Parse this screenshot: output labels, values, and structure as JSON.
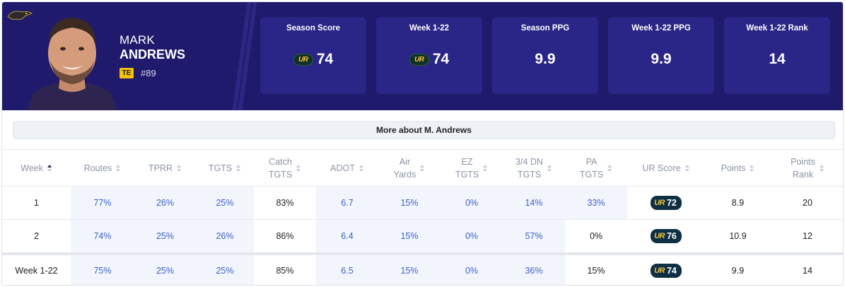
{
  "player": {
    "first_name": "MARK",
    "last_name": "ANDREWS",
    "position": "TE",
    "jersey": "#89"
  },
  "summary": [
    {
      "title": "Season Score",
      "value": "74",
      "ur_logo": true
    },
    {
      "title": "Week 1-22",
      "value": "74",
      "ur_logo": true
    },
    {
      "title": "Season PPG",
      "value": "9.9",
      "ur_logo": false
    },
    {
      "title": "Week 1-22 PPG",
      "value": "9.9",
      "ur_logo": false
    },
    {
      "title": "Week 1-22 Rank",
      "value": "14",
      "ur_logo": false
    }
  ],
  "more_button": "More about M. Andrews",
  "ur_logo_text": "UR",
  "table": {
    "columns": [
      {
        "line1": "Week",
        "line2": "",
        "sorted": true
      },
      {
        "line1": "Routes",
        "line2": "",
        "sorted": false
      },
      {
        "line1": "TPRR",
        "line2": "",
        "sorted": false
      },
      {
        "line1": "TGTS",
        "line2": "",
        "sorted": false
      },
      {
        "line1": "Catch",
        "line2": "TGTS",
        "sorted": false
      },
      {
        "line1": "ADOT",
        "line2": "",
        "sorted": false
      },
      {
        "line1": "Air",
        "line2": "Yards",
        "sorted": false
      },
      {
        "line1": "EZ",
        "line2": "TGTS",
        "sorted": false
      },
      {
        "line1": "3/4 DN",
        "line2": "TGTS",
        "sorted": false
      },
      {
        "line1": "PA",
        "line2": "TGTS",
        "sorted": false
      },
      {
        "line1": "UR Score",
        "line2": "",
        "sorted": false
      },
      {
        "line1": "Points",
        "line2": "",
        "sorted": false
      },
      {
        "line1": "Points",
        "line2": "Rank",
        "sorted": false
      }
    ],
    "rows": [
      {
        "week": "1",
        "routes": "77%",
        "tprr": "26%",
        "tgts": "25%",
        "catch": "83%",
        "adot": "6.7",
        "air": "15%",
        "ez": "0%",
        "dn": "14%",
        "pa": "33%",
        "ur": "72",
        "points": "8.9",
        "rank": "20"
      },
      {
        "week": "2",
        "routes": "74%",
        "tprr": "25%",
        "tgts": "26%",
        "catch": "86%",
        "adot": "6.4",
        "air": "15%",
        "ez": "0%",
        "dn": "57%",
        "pa": "0%",
        "ur": "76",
        "points": "10.9",
        "rank": "12"
      }
    ],
    "total": {
      "week": "Week 1-22",
      "routes": "75%",
      "tprr": "25%",
      "tgts": "25%",
      "catch": "85%",
      "adot": "6.5",
      "air": "15%",
      "ez": "0%",
      "dn": "36%",
      "pa": "15%",
      "ur": "74",
      "points": "9.9",
      "rank": "14"
    }
  },
  "colors": {
    "header_bg": "#1f1a6b",
    "stat_box_bg": "#2a2688",
    "highlight_text": "#3c5fc7",
    "highlight_bg": "#f2f6fc",
    "position_badge": "#f2c200"
  }
}
